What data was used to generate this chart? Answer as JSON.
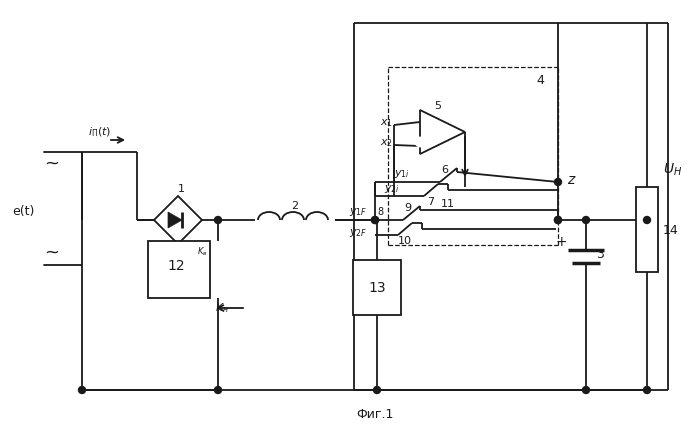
{
  "bg": "#ffffff",
  "lc": "#1a1a1a",
  "lw": 1.3,
  "fig_label": "Фиг.1"
}
